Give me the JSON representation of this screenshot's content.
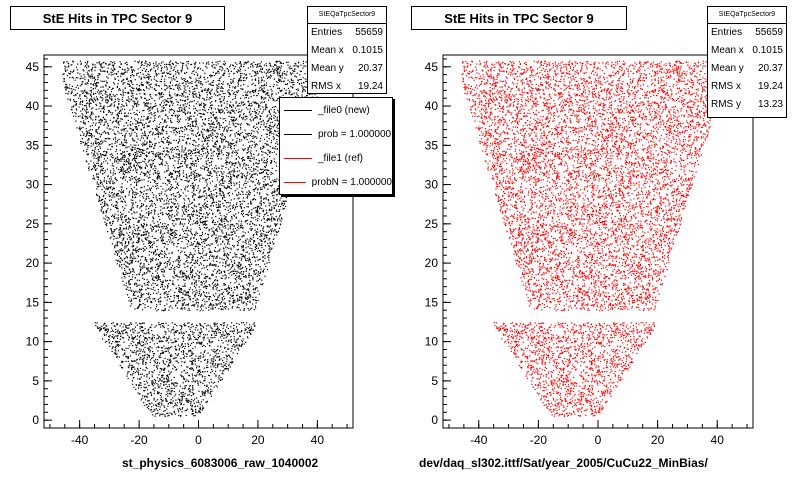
{
  "chart_data": [
    {
      "type": "scatter",
      "title": "StE Hits in TPC Sector 9",
      "xlabel": "st_physics_6083006_raw_1040002",
      "color": "#000000",
      "xlim": [
        -52,
        52
      ],
      "ylim": [
        -1,
        46.5
      ],
      "xticks": [
        -40,
        -20,
        0,
        20,
        40
      ],
      "yticks": [
        0,
        5,
        10,
        15,
        20,
        25,
        30,
        35,
        40,
        45
      ],
      "stats": {
        "name": "StEQaTpcSector9",
        "rows": [
          {
            "label": "Entries",
            "value": "55659"
          },
          {
            "label": "Mean x",
            "value": "0.1015"
          },
          {
            "label": "Mean y",
            "value": "20.37"
          },
          {
            "label": "RMS x",
            "value": "19.24"
          }
        ]
      },
      "legend": [
        {
          "label": "_file0 (new)",
          "color": "#000000"
        },
        {
          "label": "prob = 1.000000",
          "color": "#000000"
        },
        {
          "label": "_file1 (ref)",
          "color": "#ff0000"
        },
        {
          "label": "probN = 1.000000",
          "color": "#ff0000"
        }
      ]
    },
    {
      "type": "scatter",
      "title": "StE Hits in TPC Sector 9",
      "xlabel": "dev/daq_sl302.ittf/Sat/year_2005/CuCu22_MinBias/",
      "color": "#ff0000",
      "xlim": [
        -52,
        52
      ],
      "ylim": [
        -1,
        46.5
      ],
      "xticks": [
        -40,
        -20,
        0,
        20,
        40
      ],
      "yticks": [
        0,
        5,
        10,
        15,
        20,
        25,
        30,
        35,
        40,
        45
      ],
      "stats": {
        "name": "StEQaTpcSector9",
        "rows": [
          {
            "label": "Entries",
            "value": "55659"
          },
          {
            "label": "Mean x",
            "value": "0.1015"
          },
          {
            "label": "Mean y",
            "value": "20.37"
          },
          {
            "label": "RMS x",
            "value": "19.24"
          },
          {
            "label": "RMS y",
            "value": "13.23"
          }
        ]
      }
    }
  ]
}
